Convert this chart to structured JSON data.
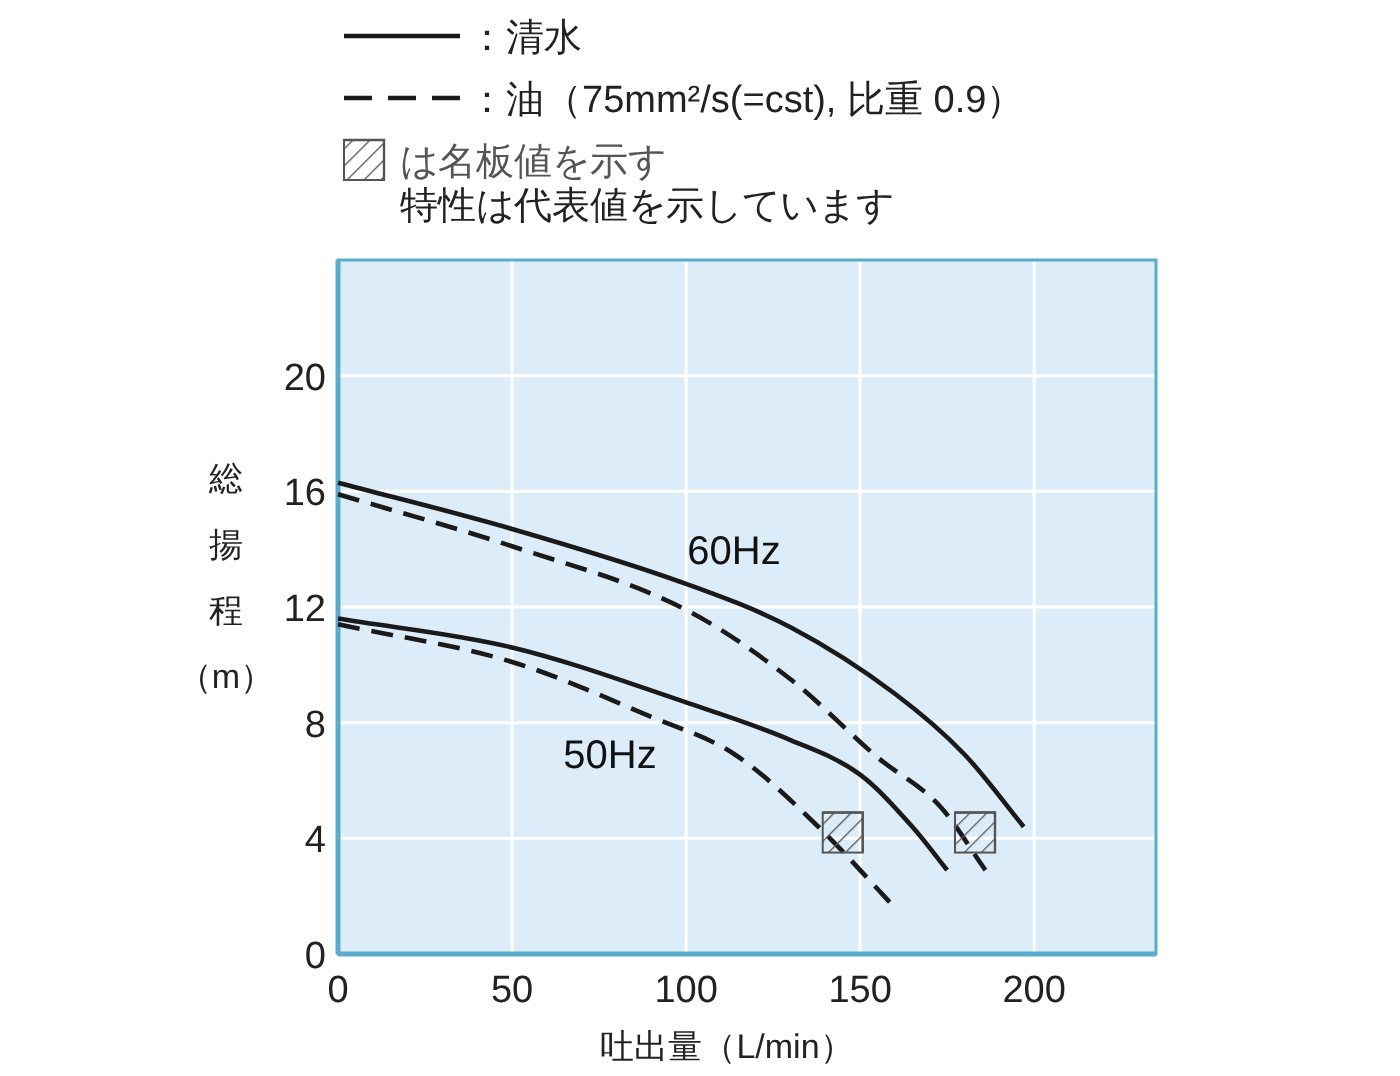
{
  "chart_data": {
    "type": "line",
    "xlabel": "吐出量（L/min）",
    "ylabel": "総揚程（m）",
    "xlim": [
      0,
      235
    ],
    "ylim": [
      0,
      24
    ],
    "xticks": [
      0,
      50,
      100,
      150,
      200
    ],
    "yticks": [
      0,
      4,
      8,
      12,
      16,
      20
    ],
    "grid": true,
    "legend": "top",
    "series": [
      {
        "name": "：清水",
        "type": "line",
        "line_style": "solid",
        "marker": "none",
        "color": "#1a1a1a",
        "x": [
          0,
          50,
          100,
          130,
          160,
          180,
          197
        ],
        "values": [
          16.3,
          14.7,
          12.8,
          11.3,
          9.0,
          6.9,
          4.4
        ]
      },
      {
        "name": "：油（75mm²/s(=cst), 比重 0.9）",
        "type": "line",
        "line_style": "dashed",
        "marker": "none",
        "color": "#1a1a1a",
        "x": [
          0,
          50,
          100,
          130,
          155,
          173,
          186
        ],
        "values": [
          15.9,
          14.1,
          11.9,
          9.5,
          6.8,
          5.1,
          2.9
        ]
      },
      {
        "type": "line",
        "line_style": "solid",
        "marker": "none",
        "color": "#1a1a1a",
        "x": [
          0,
          50,
          100,
          130,
          150,
          165,
          175
        ],
        "values": [
          11.6,
          10.6,
          8.7,
          7.4,
          6.2,
          4.4,
          2.9
        ]
      },
      {
        "type": "line",
        "line_style": "dashed",
        "marker": "none",
        "color": "#1a1a1a",
        "x": [
          0,
          50,
          90,
          114,
          138,
          160
        ],
        "values": [
          11.4,
          10.1,
          8.2,
          6.9,
          4.4,
          1.6
        ]
      },
      {
        "name": "は名板値を示す",
        "type": "scatter",
        "marker": "square",
        "color": "#555555",
        "x": [
          145,
          183
        ],
        "values": [
          4.2,
          4.2
        ]
      }
    ],
    "annotations": [
      "特性は代表値を示しています",
      "60Hz",
      "50Hz"
    ]
  }
}
